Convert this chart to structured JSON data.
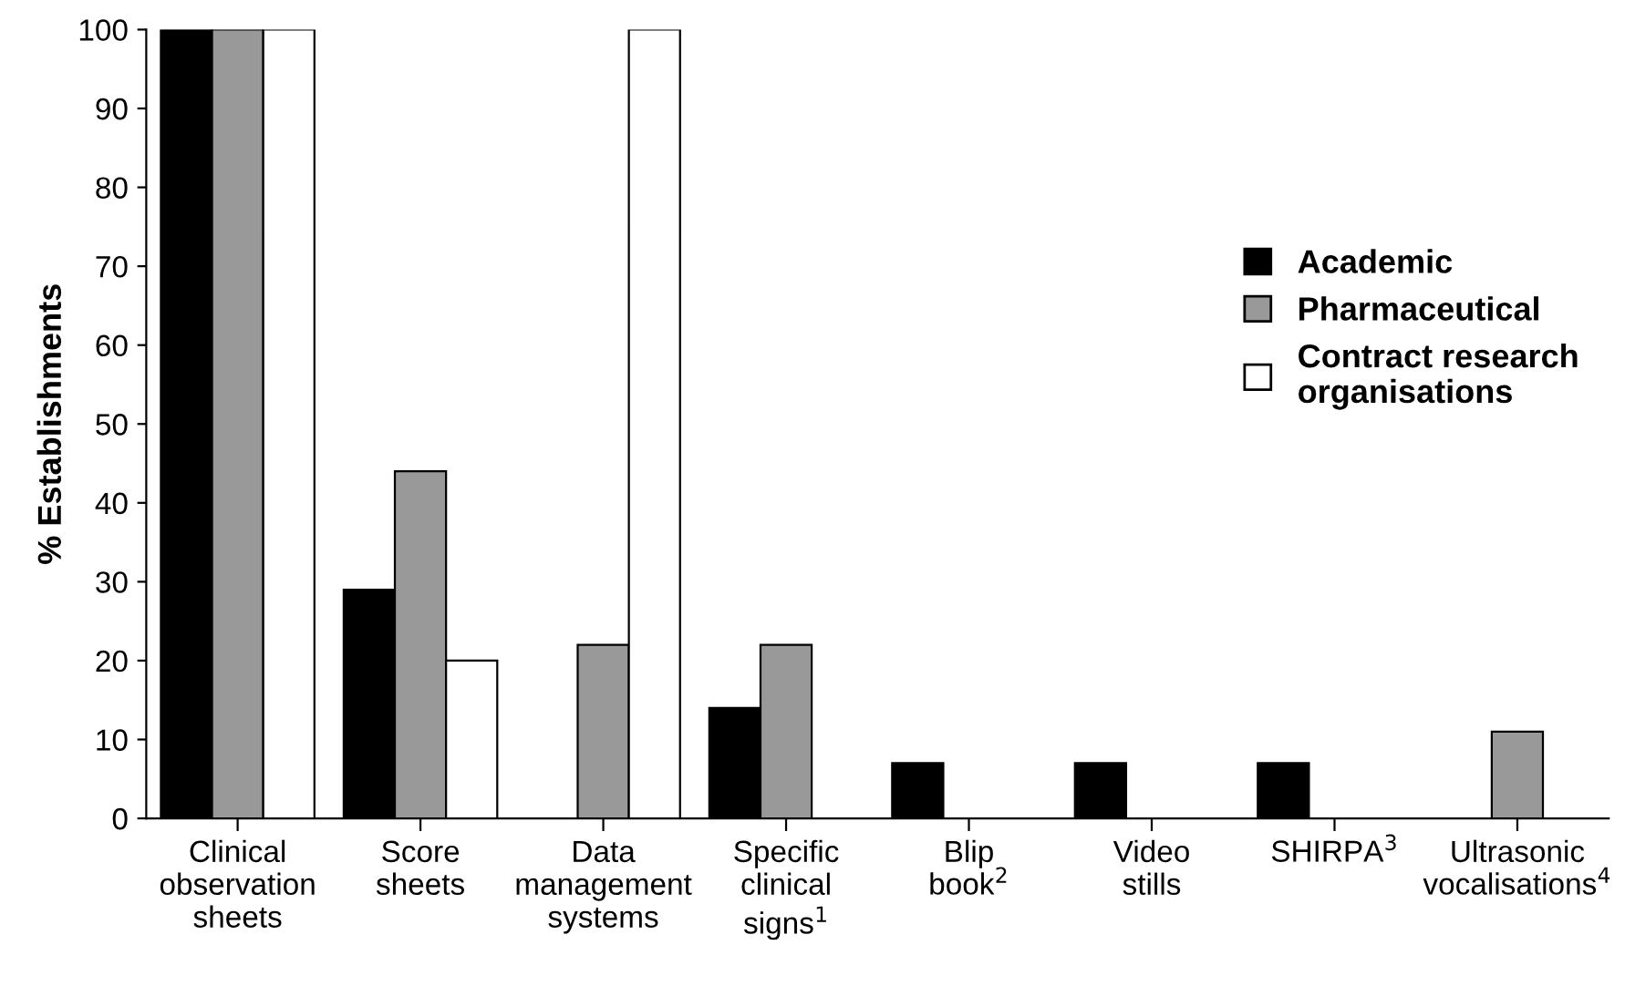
{
  "chart_data": {
    "type": "bar",
    "ylabel": "% Establishments",
    "categories": [
      "Clinical\nobservation\nsheets",
      "Score\nsheets",
      "Data\nmanagement\nsystems",
      "Specific\nclinical\nsigns$^{1}$",
      "Blip\nbook$^{2}$",
      "Video\nstills",
      "SHIRPA$^{3}$",
      "Ultrasonic\nvocalisations$^{4}$"
    ],
    "series": [
      {
        "name": "Academic",
        "color": "#000000",
        "values": [
          100,
          29,
          0,
          14,
          7,
          7,
          7,
          0
        ]
      },
      {
        "name": "Pharmaceutical",
        "color": "#999999",
        "values": [
          100,
          44,
          22,
          22,
          0,
          0,
          0,
          11
        ]
      },
      {
        "name": "Contract research\norganisations",
        "color": "#ffffff",
        "values": [
          100,
          20,
          100,
          0,
          0,
          0,
          0,
          0
        ]
      }
    ],
    "ylim": [
      0,
      100
    ],
    "yticks": [
      0,
      10,
      20,
      30,
      40,
      50,
      60,
      70,
      80,
      90,
      100
    ],
    "grid": false,
    "legend": "right"
  }
}
